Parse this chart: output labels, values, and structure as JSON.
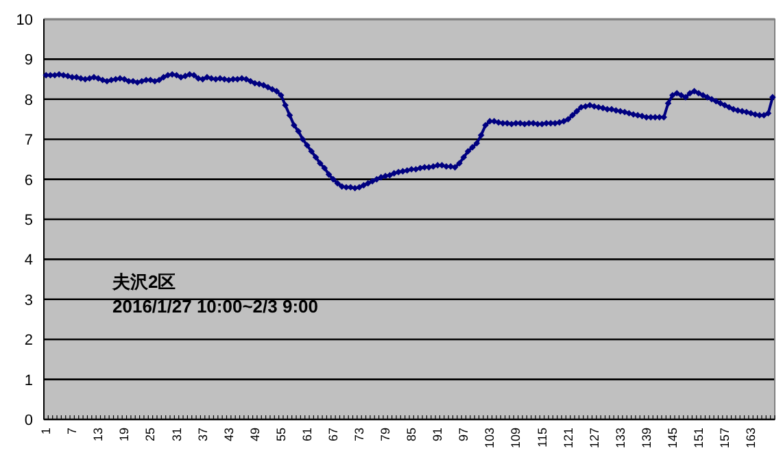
{
  "chart_data": {
    "type": "line",
    "categories": [
      "1",
      null,
      null,
      null,
      null,
      null,
      "7",
      null,
      null,
      null,
      null,
      null,
      "13",
      null,
      null,
      null,
      null,
      null,
      "19",
      null,
      null,
      null,
      null,
      null,
      "25",
      null,
      null,
      null,
      null,
      null,
      "31",
      null,
      null,
      null,
      null,
      null,
      "37",
      null,
      null,
      null,
      null,
      null,
      "43",
      null,
      null,
      null,
      null,
      null,
      "49",
      null,
      null,
      null,
      null,
      null,
      "55",
      null,
      null,
      null,
      null,
      null,
      "61",
      null,
      null,
      null,
      null,
      null,
      "67",
      null,
      null,
      null,
      null,
      null,
      "73",
      null,
      null,
      null,
      null,
      null,
      "79",
      null,
      null,
      null,
      null,
      null,
      "85",
      null,
      null,
      null,
      null,
      null,
      "91",
      null,
      null,
      null,
      null,
      null,
      "97",
      null,
      null,
      null,
      null,
      null,
      "103",
      null,
      null,
      null,
      null,
      null,
      "109",
      null,
      null,
      null,
      null,
      null,
      "115",
      null,
      null,
      null,
      null,
      null,
      "121",
      null,
      null,
      null,
      null,
      null,
      "127",
      null,
      null,
      null,
      null,
      null,
      "133",
      null,
      null,
      null,
      null,
      null,
      "139",
      null,
      null,
      null,
      null,
      null,
      "145",
      null,
      null,
      null,
      null,
      null,
      "151",
      null,
      null,
      null,
      null,
      null,
      "157",
      null,
      null,
      null,
      null,
      null,
      "163",
      null,
      null,
      null,
      null,
      null
    ],
    "series": [
      {
        "color": "#000080",
        "values": [
          8.6,
          8.6,
          8.6,
          8.62,
          8.6,
          8.58,
          8.55,
          8.55,
          8.52,
          8.5,
          8.52,
          8.55,
          8.52,
          8.48,
          8.45,
          8.48,
          8.5,
          8.52,
          8.5,
          8.45,
          8.45,
          8.42,
          8.45,
          8.48,
          8.48,
          8.45,
          8.48,
          8.55,
          8.6,
          8.62,
          8.6,
          8.55,
          8.58,
          8.62,
          8.6,
          8.52,
          8.5,
          8.55,
          8.52,
          8.5,
          8.52,
          8.5,
          8.48,
          8.5,
          8.5,
          8.52,
          8.5,
          8.45,
          8.4,
          8.38,
          8.35,
          8.3,
          8.25,
          8.2,
          8.1,
          7.85,
          7.6,
          7.35,
          7.2,
          7.0,
          6.85,
          6.7,
          6.55,
          6.4,
          6.28,
          6.12,
          6.0,
          5.9,
          5.82,
          5.8,
          5.8,
          5.78,
          5.8,
          5.85,
          5.9,
          5.95,
          6.0,
          6.05,
          6.08,
          6.1,
          6.15,
          6.18,
          6.2,
          6.22,
          6.25,
          6.25,
          6.28,
          6.3,
          6.3,
          6.32,
          6.35,
          6.35,
          6.32,
          6.32,
          6.3,
          6.4,
          6.55,
          6.7,
          6.8,
          6.9,
          7.1,
          7.35,
          7.45,
          7.45,
          7.42,
          7.4,
          7.4,
          7.38,
          7.4,
          7.4,
          7.38,
          7.4,
          7.4,
          7.38,
          7.38,
          7.4,
          7.4,
          7.4,
          7.42,
          7.45,
          7.5,
          7.6,
          7.7,
          7.8,
          7.82,
          7.85,
          7.82,
          7.8,
          7.78,
          7.75,
          7.75,
          7.72,
          7.7,
          7.68,
          7.65,
          7.62,
          7.6,
          7.58,
          7.55,
          7.55,
          7.55,
          7.55,
          7.55,
          7.9,
          8.1,
          8.15,
          8.1,
          8.05,
          8.15,
          8.2,
          8.15,
          8.1,
          8.05,
          8.0,
          7.95,
          7.9,
          7.85,
          7.8,
          7.75,
          7.72,
          7.7,
          7.68,
          7.65,
          7.62,
          7.6,
          7.6,
          7.65,
          8.05
        ]
      }
    ],
    "ylim": [
      0,
      10
    ],
    "yticks": [
      0,
      1,
      2,
      3,
      4,
      5,
      6,
      7,
      8,
      9,
      10
    ],
    "grid": "y",
    "marker": "diamond",
    "line_style": "solid",
    "annotations": [
      "夫沢2区",
      "2016/1/27 10:00~2/3 9:00"
    ]
  }
}
